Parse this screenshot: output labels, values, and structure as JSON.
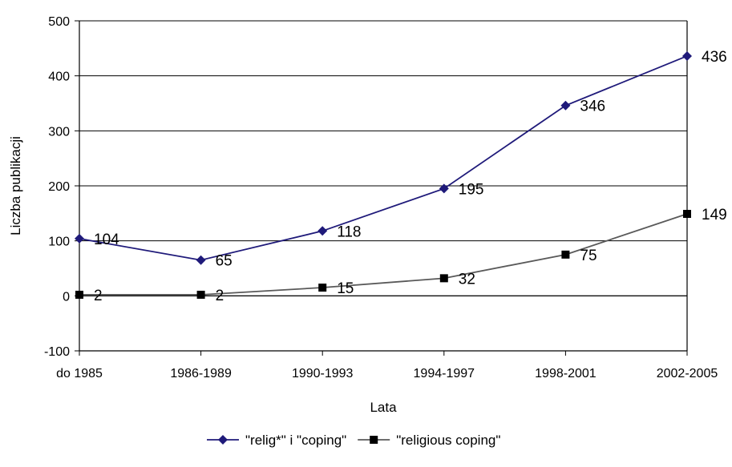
{
  "chart_data": {
    "type": "line",
    "title": "",
    "xlabel": "Lata",
    "ylabel": "Liczba publikacji",
    "ylim": [
      -100,
      500
    ],
    "yticks": [
      -100,
      0,
      100,
      200,
      300,
      400,
      500
    ],
    "categories": [
      "do 1985",
      "1986-1989",
      "1990-1993",
      "1994-1997",
      "1998-2001",
      "2002-2005"
    ],
    "grid": true,
    "legend_position": "bottom",
    "series": [
      {
        "name": "\"relig*\" i \"coping\"",
        "values": [
          104,
          65,
          118,
          195,
          346,
          436
        ],
        "color": "#1f1a7a",
        "marker": "diamond"
      },
      {
        "name": "\"religious coping\"",
        "values": [
          2,
          2,
          15,
          32,
          75,
          149
        ],
        "color": "#595959",
        "marker": "square"
      }
    ]
  }
}
